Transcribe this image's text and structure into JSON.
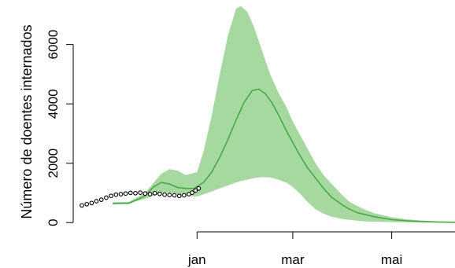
{
  "chart_data": {
    "type": "line",
    "title": "",
    "xlabel": "",
    "ylabel": "Número de doentes internados",
    "x_axis": {
      "ticks": [
        {
          "label": "jan",
          "date": "2021-01-01"
        },
        {
          "label": "mar",
          "date": "2021-03-01"
        },
        {
          "label": "mai",
          "date": "2021-05-01"
        }
      ],
      "range": [
        "2020-10-22",
        "2021-06-09"
      ]
    },
    "y_axis": {
      "ticks": [
        0,
        2000,
        4000,
        6000
      ],
      "range": [
        -180,
        7500
      ]
    },
    "grid": false,
    "legend": "none",
    "colors": {
      "band_fill": "#a6d9a0",
      "median_line": "#4aa84a",
      "observed_points": "#000000"
    },
    "series": [
      {
        "kind": "band",
        "x": [
          "2020-11-10",
          "2020-11-20",
          "2020-11-30",
          "2020-12-10",
          "2020-12-15",
          "2020-12-20",
          "2020-12-25",
          "2021-01-01",
          "2021-01-05",
          "2021-01-10",
          "2021-01-15",
          "2021-01-20",
          "2021-01-25",
          "2021-01-28",
          "2021-02-01",
          "2021-02-05",
          "2021-02-10",
          "2021-02-15",
          "2021-02-20",
          "2021-02-25",
          "2021-03-01",
          "2021-03-05",
          "2021-03-10",
          "2021-03-15",
          "2021-03-20",
          "2021-03-25",
          "2021-04-01",
          "2021-04-05",
          "2021-04-10",
          "2021-04-15",
          "2021-04-20",
          "2021-05-01",
          "2021-05-10",
          "2021-05-20",
          "2021-05-31",
          "2021-06-09"
        ],
        "upper": [
          680,
          700,
          1000,
          1650,
          1800,
          1750,
          1600,
          1700,
          2400,
          3600,
          5000,
          6300,
          7200,
          7300,
          7100,
          6600,
          5800,
          5000,
          4400,
          3900,
          3400,
          3000,
          2500,
          2000,
          1600,
          1300,
          900,
          700,
          550,
          420,
          320,
          180,
          110,
          70,
          40,
          30
        ],
        "lower": [
          600,
          650,
          800,
          1000,
          1000,
          950,
          900,
          880,
          950,
          1050,
          1150,
          1250,
          1350,
          1400,
          1450,
          1500,
          1530,
          1520,
          1450,
          1350,
          1200,
          1000,
          700,
          450,
          300,
          200,
          120,
          90,
          60,
          40,
          30,
          15,
          10,
          5,
          0,
          0
        ]
      },
      {
        "kind": "median",
        "x": [
          "2020-11-10",
          "2020-11-20",
          "2020-11-30",
          "2020-12-05",
          "2020-12-10",
          "2020-12-15",
          "2020-12-20",
          "2020-12-25",
          "2020-12-30",
          "2021-01-05",
          "2021-01-10",
          "2021-01-15",
          "2021-01-20",
          "2021-01-25",
          "2021-01-30",
          "2021-02-04",
          "2021-02-08",
          "2021-02-12",
          "2021-02-16",
          "2021-02-20",
          "2021-02-25",
          "2021-03-01",
          "2021-03-05",
          "2021-03-10",
          "2021-03-15",
          "2021-03-20",
          "2021-03-25",
          "2021-04-01",
          "2021-04-05",
          "2021-04-10",
          "2021-04-20",
          "2021-05-01",
          "2021-05-10",
          "2021-05-20",
          "2021-05-31",
          "2021-06-09"
        ],
        "values": [
          650,
          650,
          900,
          1200,
          1350,
          1300,
          1180,
          1150,
          1150,
          1350,
          1700,
          2200,
          2800,
          3450,
          4050,
          4450,
          4500,
          4350,
          4050,
          3650,
          3100,
          2700,
          2300,
          1850,
          1500,
          1150,
          850,
          580,
          450,
          330,
          200,
          100,
          60,
          35,
          15,
          10
        ]
      },
      {
        "kind": "observed",
        "x": [
          "2020-10-22",
          "2020-10-25",
          "2020-10-28",
          "2020-10-31",
          "2020-11-03",
          "2020-11-06",
          "2020-11-09",
          "2020-11-12",
          "2020-11-15",
          "2020-11-18",
          "2020-11-21",
          "2020-11-24",
          "2020-11-27",
          "2020-11-30",
          "2020-12-03",
          "2020-12-06",
          "2020-12-09",
          "2020-12-12",
          "2020-12-15",
          "2020-12-18",
          "2020-12-21",
          "2020-12-24",
          "2020-12-27",
          "2020-12-29",
          "2020-12-31",
          "2021-01-02"
        ],
        "values": [
          580,
          620,
          660,
          720,
          770,
          840,
          900,
          940,
          960,
          980,
          1000,
          990,
          1010,
          980,
          960,
          990,
          970,
          940,
          930,
          920,
          900,
          920,
          960,
          1010,
          1080,
          1150
        ]
      }
    ]
  }
}
